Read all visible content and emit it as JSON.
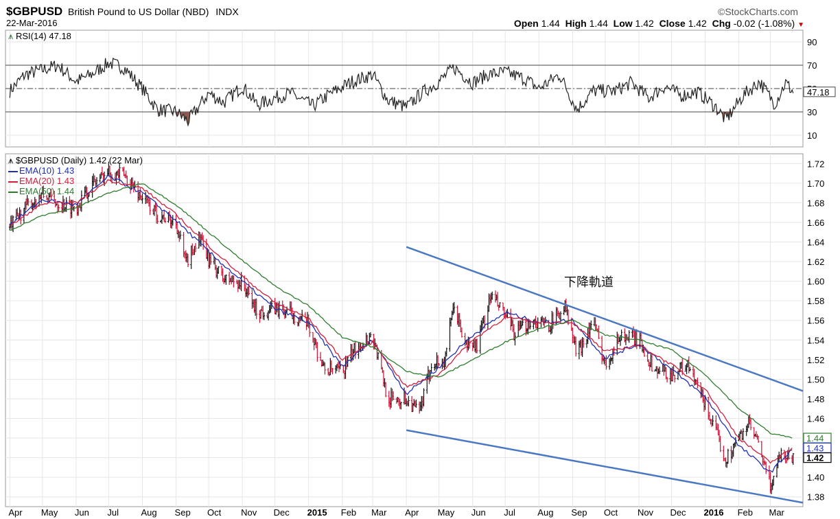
{
  "header": {
    "symbol": "$GBPUSD",
    "name": "British Pound to US Dollar (NBD)",
    "exchange": "INDX",
    "date": "22-Mar-2016",
    "brand": "©StockCharts.com",
    "open_label": "Open",
    "open": "1.44",
    "high_label": "High",
    "high": "1.44",
    "low_label": "Low",
    "low": "1.42",
    "close_label": "Close",
    "close": "1.42",
    "chg_label": "Chg",
    "chg": "-0.02 (-1.08%)",
    "chg_color": "#cc0000"
  },
  "legend": {
    "rsi": "RSI(14) 47.18",
    "price": "$GBPUSD (Daily) 1.42 (22 Mar)",
    "ema10": "EMA(10) 1.43",
    "ema20": "EMA(20) 1.43",
    "ema50": "EMA(50) 1.44"
  },
  "annotation": {
    "text": "下降軌道"
  },
  "colors": {
    "up": "#111111",
    "down": "#cc1133",
    "ema10": "#1f2fb0",
    "ema20": "#d01f3c",
    "ema50": "#2e7d2e",
    "channel": "#4a78c2",
    "rsi_fill": "#8b5a50"
  },
  "chart_data": [
    {
      "type": "line",
      "title": "RSI(14) 47.18",
      "ylim": [
        0,
        100
      ],
      "y_ticks": [
        "90",
        "70",
        "50",
        "30",
        "10"
      ],
      "reference_lines": [
        70,
        50,
        30
      ],
      "last_value_label": "47.18",
      "series": [
        {
          "name": "RSI(14)",
          "points": [
            [
              "2014-04-01",
              48
            ],
            [
              "2014-04-15",
              62
            ],
            [
              "2014-05-01",
              66
            ],
            [
              "2014-05-15",
              70
            ],
            [
              "2014-06-01",
              56
            ],
            [
              "2014-06-15",
              62
            ],
            [
              "2014-07-01",
              72
            ],
            [
              "2014-07-15",
              68
            ],
            [
              "2014-08-01",
              50
            ],
            [
              "2014-08-15",
              32
            ],
            [
              "2014-09-01",
              30
            ],
            [
              "2014-09-12",
              22
            ],
            [
              "2014-10-01",
              46
            ],
            [
              "2014-10-15",
              38
            ],
            [
              "2014-11-01",
              52
            ],
            [
              "2014-11-15",
              36
            ],
            [
              "2014-12-01",
              42
            ],
            [
              "2014-12-15",
              46
            ],
            [
              "2015-01-05",
              35
            ],
            [
              "2015-01-20",
              45
            ],
            [
              "2015-02-10",
              56
            ],
            [
              "2015-03-01",
              62
            ],
            [
              "2015-03-15",
              40
            ],
            [
              "2015-04-01",
              34
            ],
            [
              "2015-04-15",
              46
            ],
            [
              "2015-05-01",
              56
            ],
            [
              "2015-05-15",
              68
            ],
            [
              "2015-06-01",
              55
            ],
            [
              "2015-06-15",
              62
            ],
            [
              "2015-07-01",
              64
            ],
            [
              "2015-07-20",
              58
            ],
            [
              "2015-08-01",
              50
            ],
            [
              "2015-08-20",
              62
            ],
            [
              "2015-09-05",
              32
            ],
            [
              "2015-09-20",
              48
            ],
            [
              "2015-10-10",
              48
            ],
            [
              "2015-10-25",
              55
            ],
            [
              "2015-11-10",
              42
            ],
            [
              "2015-11-25",
              52
            ],
            [
              "2015-12-10",
              44
            ],
            [
              "2015-12-25",
              47
            ],
            [
              "2016-01-10",
              35
            ],
            [
              "2016-01-20",
              23
            ],
            [
              "2016-02-05",
              44
            ],
            [
              "2016-02-20",
              56
            ],
            [
              "2016-03-05",
              37
            ],
            [
              "2016-03-15",
              55
            ],
            [
              "2016-03-22",
              47.18
            ]
          ]
        }
      ]
    },
    {
      "type": "line",
      "title": "$GBPUSD (Daily) 1.42 (22 Mar)",
      "ylim": [
        1.37,
        1.73
      ],
      "y_ticks": [
        "1.72",
        "1.70",
        "1.68",
        "1.66",
        "1.64",
        "1.62",
        "1.60",
        "1.58",
        "1.56",
        "1.54",
        "1.52",
        "1.50",
        "1.48",
        "1.46",
        "1.44",
        "1.42",
        "1.40",
        "1.38"
      ],
      "x_tick_labels": [
        "Apr",
        "May",
        "Jun",
        "Jul",
        "Aug",
        "Sep",
        "Oct",
        "Nov",
        "Dec",
        "2015",
        "Feb",
        "Mar",
        "Apr",
        "May",
        "Jun",
        "Jul",
        "Aug",
        "Sep",
        "Oct",
        "Nov",
        "Dec",
        "2016",
        "Feb",
        "Mar"
      ],
      "price_tags": [
        "1.44",
        "1.43",
        "1.42"
      ],
      "grid": true,
      "series": [
        {
          "name": "$GBPUSD",
          "points": [
            [
              "2014-04-01",
              1.655
            ],
            [
              "2014-04-15",
              1.675
            ],
            [
              "2014-05-01",
              1.688
            ],
            [
              "2014-05-15",
              1.68
            ],
            [
              "2014-06-01",
              1.675
            ],
            [
              "2014-06-15",
              1.698
            ],
            [
              "2014-07-01",
              1.712
            ],
            [
              "2014-07-15",
              1.708
            ],
            [
              "2014-08-01",
              1.685
            ],
            [
              "2014-08-15",
              1.668
            ],
            [
              "2014-09-01",
              1.66
            ],
            [
              "2014-09-10",
              1.618
            ],
            [
              "2014-09-22",
              1.645
            ],
            [
              "2014-10-01",
              1.622
            ],
            [
              "2014-10-15",
              1.602
            ],
            [
              "2014-11-01",
              1.598
            ],
            [
              "2014-11-15",
              1.568
            ],
            [
              "2014-12-01",
              1.572
            ],
            [
              "2014-12-15",
              1.568
            ],
            [
              "2015-01-01",
              1.555
            ],
            [
              "2015-01-15",
              1.51
            ],
            [
              "2015-02-01",
              1.508
            ],
            [
              "2015-02-15",
              1.535
            ],
            [
              "2015-03-01",
              1.545
            ],
            [
              "2015-03-15",
              1.48
            ],
            [
              "2015-04-01",
              1.48
            ],
            [
              "2015-04-13",
              1.465
            ],
            [
              "2015-04-25",
              1.52
            ],
            [
              "2015-05-05",
              1.515
            ],
            [
              "2015-05-15",
              1.575
            ],
            [
              "2015-05-25",
              1.535
            ],
            [
              "2015-06-05",
              1.535
            ],
            [
              "2015-06-18",
              1.585
            ],
            [
              "2015-07-01",
              1.565
            ],
            [
              "2015-07-10",
              1.545
            ],
            [
              "2015-07-25",
              1.56
            ],
            [
              "2015-08-10",
              1.555
            ],
            [
              "2015-08-25",
              1.575
            ],
            [
              "2015-09-05",
              1.525
            ],
            [
              "2015-09-20",
              1.56
            ],
            [
              "2015-10-01",
              1.515
            ],
            [
              "2015-10-15",
              1.545
            ],
            [
              "2015-11-01",
              1.54
            ],
            [
              "2015-11-15",
              1.51
            ],
            [
              "2015-12-01",
              1.505
            ],
            [
              "2015-12-15",
              1.515
            ],
            [
              "2016-01-01",
              1.475
            ],
            [
              "2016-01-20",
              1.418
            ],
            [
              "2016-02-01",
              1.44
            ],
            [
              "2016-02-10",
              1.455
            ],
            [
              "2016-02-20",
              1.43
            ],
            [
              "2016-03-01",
              1.39
            ],
            [
              "2016-03-10",
              1.425
            ],
            [
              "2016-03-22",
              1.42
            ]
          ]
        },
        {
          "name": "EMA(10)",
          "points": [
            [
              "2014-04-01",
              1.658
            ],
            [
              "2014-05-01",
              1.683
            ],
            [
              "2014-06-01",
              1.678
            ],
            [
              "2014-07-01",
              1.707
            ],
            [
              "2014-08-01",
              1.69
            ],
            [
              "2014-09-01",
              1.662
            ],
            [
              "2014-10-01",
              1.63
            ],
            [
              "2014-11-01",
              1.6
            ],
            [
              "2014-12-01",
              1.572
            ],
            [
              "2015-01-01",
              1.558
            ],
            [
              "2015-02-01",
              1.513
            ],
            [
              "2015-03-01",
              1.54
            ],
            [
              "2015-04-01",
              1.485
            ],
            [
              "2015-05-01",
              1.512
            ],
            [
              "2015-06-01",
              1.545
            ],
            [
              "2015-07-01",
              1.568
            ],
            [
              "2015-08-01",
              1.558
            ],
            [
              "2015-09-01",
              1.56
            ],
            [
              "2015-10-01",
              1.522
            ],
            [
              "2015-11-01",
              1.536
            ],
            [
              "2015-12-01",
              1.51
            ],
            [
              "2016-01-01",
              1.482
            ],
            [
              "2016-02-01",
              1.432
            ],
            [
              "2016-03-01",
              1.405
            ],
            [
              "2016-03-22",
              1.43
            ]
          ]
        },
        {
          "name": "EMA(20)",
          "points": [
            [
              "2014-04-01",
              1.656
            ],
            [
              "2014-05-01",
              1.679
            ],
            [
              "2014-06-01",
              1.68
            ],
            [
              "2014-07-01",
              1.703
            ],
            [
              "2014-08-01",
              1.695
            ],
            [
              "2014-09-01",
              1.668
            ],
            [
              "2014-10-01",
              1.636
            ],
            [
              "2014-11-01",
              1.605
            ],
            [
              "2014-12-01",
              1.578
            ],
            [
              "2015-01-01",
              1.562
            ],
            [
              "2015-02-01",
              1.52
            ],
            [
              "2015-03-01",
              1.538
            ],
            [
              "2015-04-01",
              1.492
            ],
            [
              "2015-05-01",
              1.505
            ],
            [
              "2015-06-01",
              1.54
            ],
            [
              "2015-07-01",
              1.563
            ],
            [
              "2015-08-01",
              1.558
            ],
            [
              "2015-09-01",
              1.558
            ],
            [
              "2015-10-01",
              1.528
            ],
            [
              "2015-11-01",
              1.535
            ],
            [
              "2015-12-01",
              1.515
            ],
            [
              "2016-01-01",
              1.49
            ],
            [
              "2016-02-01",
              1.44
            ],
            [
              "2016-03-01",
              1.415
            ],
            [
              "2016-03-22",
              1.43
            ]
          ]
        },
        {
          "name": "EMA(50)",
          "points": [
            [
              "2014-04-01",
              1.652
            ],
            [
              "2014-05-01",
              1.667
            ],
            [
              "2014-06-01",
              1.675
            ],
            [
              "2014-07-01",
              1.69
            ],
            [
              "2014-08-01",
              1.7
            ],
            [
              "2014-09-01",
              1.678
            ],
            [
              "2014-10-01",
              1.65
            ],
            [
              "2014-11-01",
              1.621
            ],
            [
              "2014-12-01",
              1.595
            ],
            [
              "2015-01-01",
              1.575
            ],
            [
              "2015-02-01",
              1.543
            ],
            [
              "2015-03-01",
              1.533
            ],
            [
              "2015-04-01",
              1.508
            ],
            [
              "2015-05-01",
              1.502
            ],
            [
              "2015-06-01",
              1.52
            ],
            [
              "2015-07-01",
              1.538
            ],
            [
              "2015-08-01",
              1.552
            ],
            [
              "2015-09-01",
              1.56
            ],
            [
              "2015-10-01",
              1.545
            ],
            [
              "2015-11-01",
              1.54
            ],
            [
              "2015-12-01",
              1.53
            ],
            [
              "2016-01-01",
              1.505
            ],
            [
              "2016-02-01",
              1.47
            ],
            [
              "2016-03-01",
              1.445
            ],
            [
              "2016-03-22",
              1.44
            ]
          ]
        },
        {
          "name": "下降軌道 (upper)",
          "points": [
            [
              "2015-04-01",
              1.635
            ],
            [
              "2016-03-31",
              1.488
            ]
          ]
        },
        {
          "name": "下降軌道 (lower)",
          "points": [
            [
              "2015-04-01",
              1.448
            ],
            [
              "2016-03-31",
              1.374
            ]
          ]
        }
      ]
    }
  ]
}
